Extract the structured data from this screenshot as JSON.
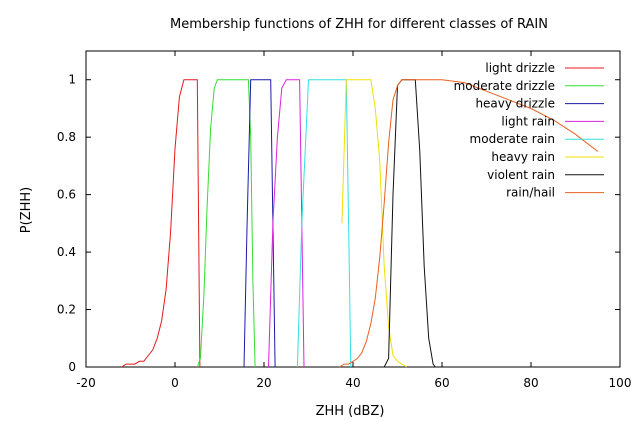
{
  "chart_data": {
    "type": "line",
    "title": "Membership functions of ZHH for different classes of RAIN",
    "xlabel": "ZHH (dBZ)",
    "ylabel": "P(ZHH)",
    "xlim": [
      -20,
      100
    ],
    "ylim": [
      0,
      1.1
    ],
    "xticks": [
      -20,
      0,
      20,
      40,
      60,
      80,
      100
    ],
    "yticks": [
      0,
      0.2,
      0.4,
      0.6,
      0.8,
      1
    ],
    "grid": false,
    "legend_position": "top-right",
    "series": [
      {
        "name": "light drizzle",
        "color": "#e41a1c",
        "points": [
          [
            -12,
            0
          ],
          [
            -11,
            0.01
          ],
          [
            -10,
            0.01
          ],
          [
            -9,
            0.01
          ],
          [
            -8,
            0.02
          ],
          [
            -7,
            0.02
          ],
          [
            -6,
            0.04
          ],
          [
            -5,
            0.06
          ],
          [
            -4,
            0.1
          ],
          [
            -3,
            0.16
          ],
          [
            -2,
            0.27
          ],
          [
            -1,
            0.47
          ],
          [
            0,
            0.76
          ],
          [
            1,
            0.94
          ],
          [
            2,
            1
          ],
          [
            3,
            1
          ],
          [
            4,
            1
          ],
          [
            5,
            1
          ],
          [
            5.3,
            0.5
          ],
          [
            5.6,
            0
          ]
        ]
      },
      {
        "name": "moderate drizzle",
        "color": "#33dd33",
        "points": [
          [
            5,
            0
          ],
          [
            5.7,
            0.03
          ],
          [
            6.5,
            0.25
          ],
          [
            7.2,
            0.55
          ],
          [
            8,
            0.83
          ],
          [
            8.8,
            0.97
          ],
          [
            9.5,
            1
          ],
          [
            12,
            1
          ],
          [
            16.5,
            1
          ],
          [
            17,
            0.8
          ],
          [
            17.5,
            0.3
          ],
          [
            18,
            0
          ]
        ]
      },
      {
        "name": "heavy drizzle",
        "color": "#1a1aaa",
        "points": [
          [
            15.5,
            0
          ],
          [
            16.2,
            0.5
          ],
          [
            17,
            1
          ],
          [
            21.5,
            1
          ],
          [
            22,
            0.5
          ],
          [
            22.5,
            0
          ]
        ]
      },
      {
        "name": "light rain",
        "color": "#dd22dd",
        "points": [
          [
            21,
            0
          ],
          [
            22,
            0.5
          ],
          [
            23,
            0.8
          ],
          [
            24,
            0.97
          ],
          [
            25,
            1
          ],
          [
            28,
            1
          ],
          [
            28.5,
            0.5
          ],
          [
            29,
            0
          ]
        ]
      },
      {
        "name": "moderate rain",
        "color": "#33e0e0",
        "points": [
          [
            27.5,
            0
          ],
          [
            28.5,
            0.5
          ],
          [
            30,
            1
          ],
          [
            38.5,
            1
          ],
          [
            39,
            0.5
          ],
          [
            39.5,
            0
          ]
        ]
      },
      {
        "name": "heavy rain",
        "color": "#f0e000",
        "points": [
          [
            37.5,
            0.5
          ],
          [
            38.5,
            1
          ],
          [
            44,
            1
          ],
          [
            45,
            0.9
          ],
          [
            46,
            0.72
          ],
          [
            47,
            0.35
          ],
          [
            48,
            0.14
          ],
          [
            49,
            0.04
          ],
          [
            50,
            0.02
          ],
          [
            51,
            0.01
          ],
          [
            52,
            0
          ]
        ]
      },
      {
        "name": "violent rain",
        "color": "#111111",
        "points": [
          [
            47,
            0
          ],
          [
            48,
            0.03
          ],
          [
            49,
            0.6
          ],
          [
            50,
            0.98
          ],
          [
            51,
            1
          ],
          [
            54,
            1
          ],
          [
            55,
            0.75
          ],
          [
            56,
            0.35
          ],
          [
            57,
            0.1
          ],
          [
            58,
            0.01
          ],
          [
            58.5,
            0
          ]
        ]
      },
      {
        "name": "rain/hail",
        "color": "#e86020",
        "points": [
          [
            37,
            0
          ],
          [
            38,
            0.01
          ],
          [
            39,
            0.01
          ],
          [
            40,
            0.02
          ],
          [
            41,
            0.03
          ],
          [
            42,
            0.05
          ],
          [
            43,
            0.09
          ],
          [
            44,
            0.15
          ],
          [
            45,
            0.24
          ],
          [
            46,
            0.38
          ],
          [
            47,
            0.57
          ],
          [
            48,
            0.78
          ],
          [
            49,
            0.93
          ],
          [
            50,
            0.98
          ],
          [
            51,
            1
          ],
          [
            60,
            1
          ],
          [
            65,
            0.99
          ],
          [
            70,
            0.96
          ],
          [
            75,
            0.93
          ],
          [
            80,
            0.9
          ],
          [
            85,
            0.86
          ],
          [
            90,
            0.81
          ],
          [
            95,
            0.75
          ]
        ]
      }
    ]
  }
}
